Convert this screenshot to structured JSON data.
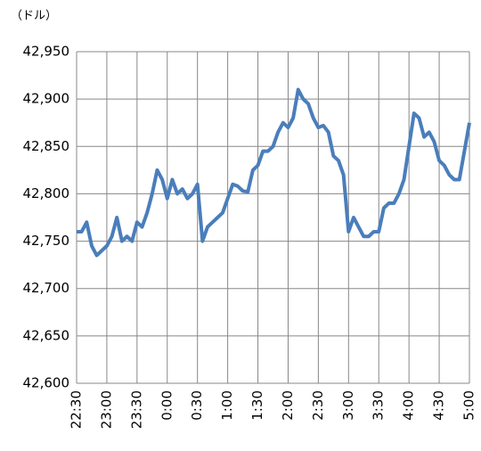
{
  "chart_data": {
    "type": "line",
    "y_unit": "（ドル）",
    "categories": [
      "22:30",
      null,
      null,
      null,
      null,
      null,
      "23:00",
      null,
      null,
      null,
      null,
      null,
      "23:30",
      null,
      null,
      null,
      null,
      null,
      "0:00",
      null,
      null,
      null,
      null,
      null,
      "0:30",
      null,
      null,
      null,
      null,
      null,
      "1:00",
      null,
      null,
      null,
      null,
      null,
      "1:30",
      null,
      null,
      null,
      null,
      null,
      "2:00",
      null,
      null,
      null,
      null,
      null,
      "2:30",
      null,
      null,
      null,
      null,
      null,
      "3:00",
      null,
      null,
      null,
      null,
      null,
      "3:30",
      null,
      null,
      null,
      null,
      null,
      "4:00",
      null,
      null,
      null,
      null,
      null,
      "4:30",
      null,
      null,
      null,
      null,
      null,
      "5:00"
    ],
    "series": [
      {
        "color": "#4a7ebb",
        "values": [
          42760,
          42760,
          42770,
          42745,
          42735,
          42740,
          42745,
          42755,
          42775,
          42750,
          42755,
          42750,
          42770,
          42765,
          42780,
          42800,
          42825,
          42815,
          42795,
          42815,
          42800,
          42805,
          42795,
          42800,
          42810,
          42750,
          42765,
          42770,
          42775,
          42780,
          42795,
          42810,
          42808,
          42803,
          42802,
          42825,
          42830,
          42845,
          42845,
          42850,
          42865,
          42875,
          42870,
          42880,
          42910,
          42900,
          42895,
          42880,
          42870,
          42872,
          42865,
          42840,
          42835,
          42820,
          42760,
          42775,
          42765,
          42755,
          42755,
          42760,
          42760,
          42785,
          42790,
          42790,
          42800,
          42815,
          42850,
          42885,
          42880,
          42860,
          42865,
          42855,
          42835,
          42830,
          42820,
          42815,
          42815,
          42845,
          42875
        ]
      }
    ],
    "ylim": [
      42600,
      42950
    ],
    "yticks": [
      {
        "value": 42600,
        "label": "42,600"
      },
      {
        "value": 42650,
        "label": "42,650"
      },
      {
        "value": 42700,
        "label": "42,700"
      },
      {
        "value": 42750,
        "label": "42,750"
      },
      {
        "value": 42800,
        "label": "42,800"
      },
      {
        "value": 42850,
        "label": "42,850"
      },
      {
        "value": 42900,
        "label": "42,900"
      },
      {
        "value": 42950,
        "label": "42,950"
      }
    ],
    "grid": true
  }
}
